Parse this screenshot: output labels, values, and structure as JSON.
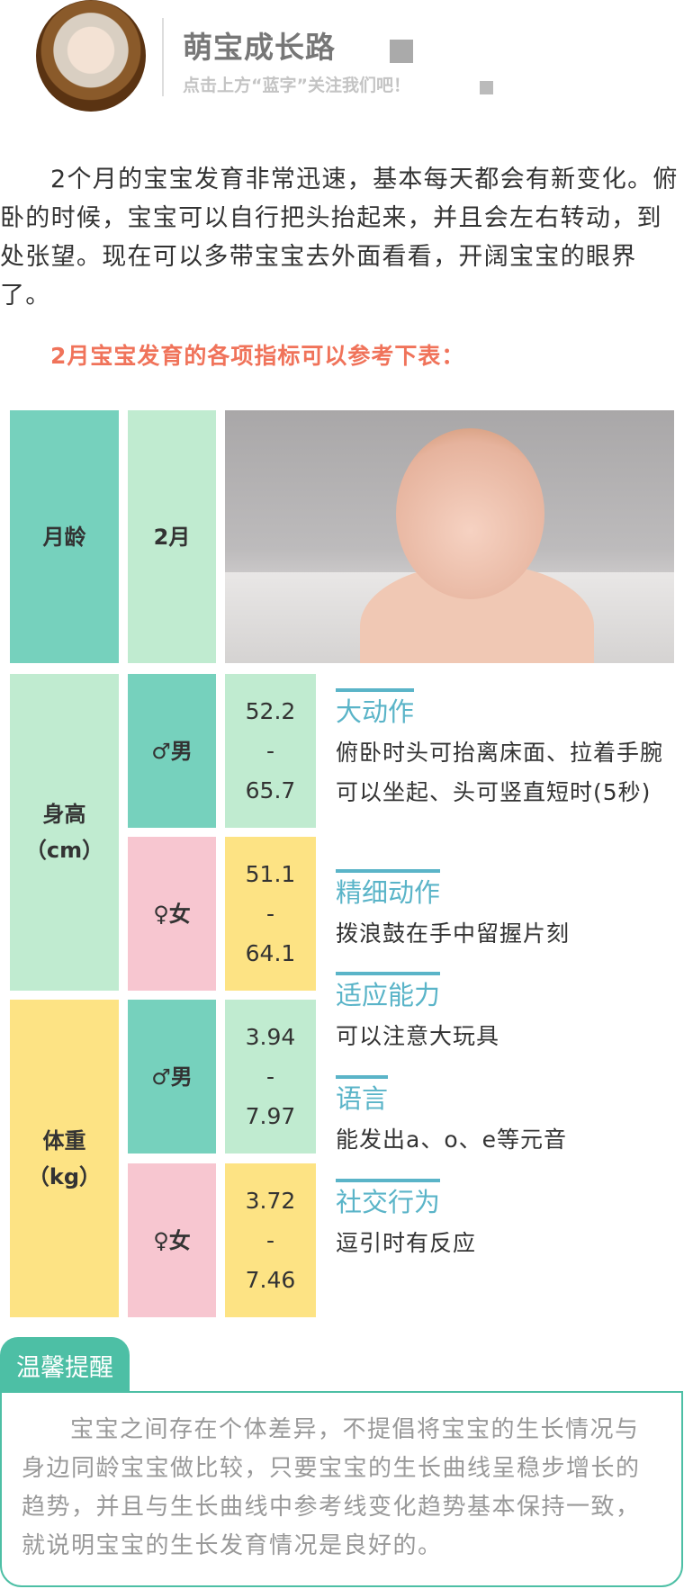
{
  "header": {
    "title": "萌宝成长路",
    "subtitle": "点击上方“蓝字”关注我们吧！"
  },
  "intro": "2个月的宝宝发育非常迅速，基本每天都会有新变化。俯卧的时候，宝宝可以自行把头抬起来，并且会左右转动，到处张望。现在可以多带宝宝去外面看看，开阔宝宝的眼界了。",
  "table_heading": "2月宝宝发育的各项指标可以参考下表：",
  "table": {
    "age_label": "月龄",
    "age_value": "2月",
    "height": {
      "label": "身高",
      "unit": "（cm）",
      "male": {
        "label": "♂男",
        "min": "52.2",
        "sep": "-",
        "max": "65.7"
      },
      "female": {
        "label": "♀女",
        "min": "51.1",
        "sep": "-",
        "max": "64.1"
      }
    },
    "weight": {
      "label": "体重",
      "unit": "（kg）",
      "male": {
        "label": "♂男",
        "min": "3.94",
        "sep": "-",
        "max": "7.97"
      },
      "female": {
        "label": "♀女",
        "min": "3.72",
        "sep": "-",
        "max": "7.46"
      }
    }
  },
  "milestones": [
    {
      "title": "大动作",
      "text": "俯卧时头可抬离床面、拉着手腕可以坐起、头可竖直短时(5秒)"
    },
    {
      "title": "精细动作",
      "text": "拨浪鼓在手中留握片刻"
    },
    {
      "title": "适应能力",
      "text": "可以注意大玩具"
    },
    {
      "title": "语言",
      "text": "能发出a、o、e等元音"
    },
    {
      "title": "社交行为",
      "text": "逗引时有反应"
    }
  ],
  "tip": {
    "label": "温馨提醒",
    "text": "宝宝之间存在个体差异，不提倡将宝宝的生长情况与身边同龄宝宝做比较，只要宝宝的生长曲线呈稳步增长的趋势，并且与生长曲线中参考线变化趋势基本保持一致，就说明宝宝的生长发育情况是良好的。"
  },
  "colors": {
    "teal": "#76d1bd",
    "mint": "#c0ebd0",
    "pink": "#f7c6d0",
    "yellow": "#fde384",
    "accent_red": "#f0735a",
    "heading_blue": "#5ab4c8",
    "tip_green": "#4dbfa5"
  }
}
